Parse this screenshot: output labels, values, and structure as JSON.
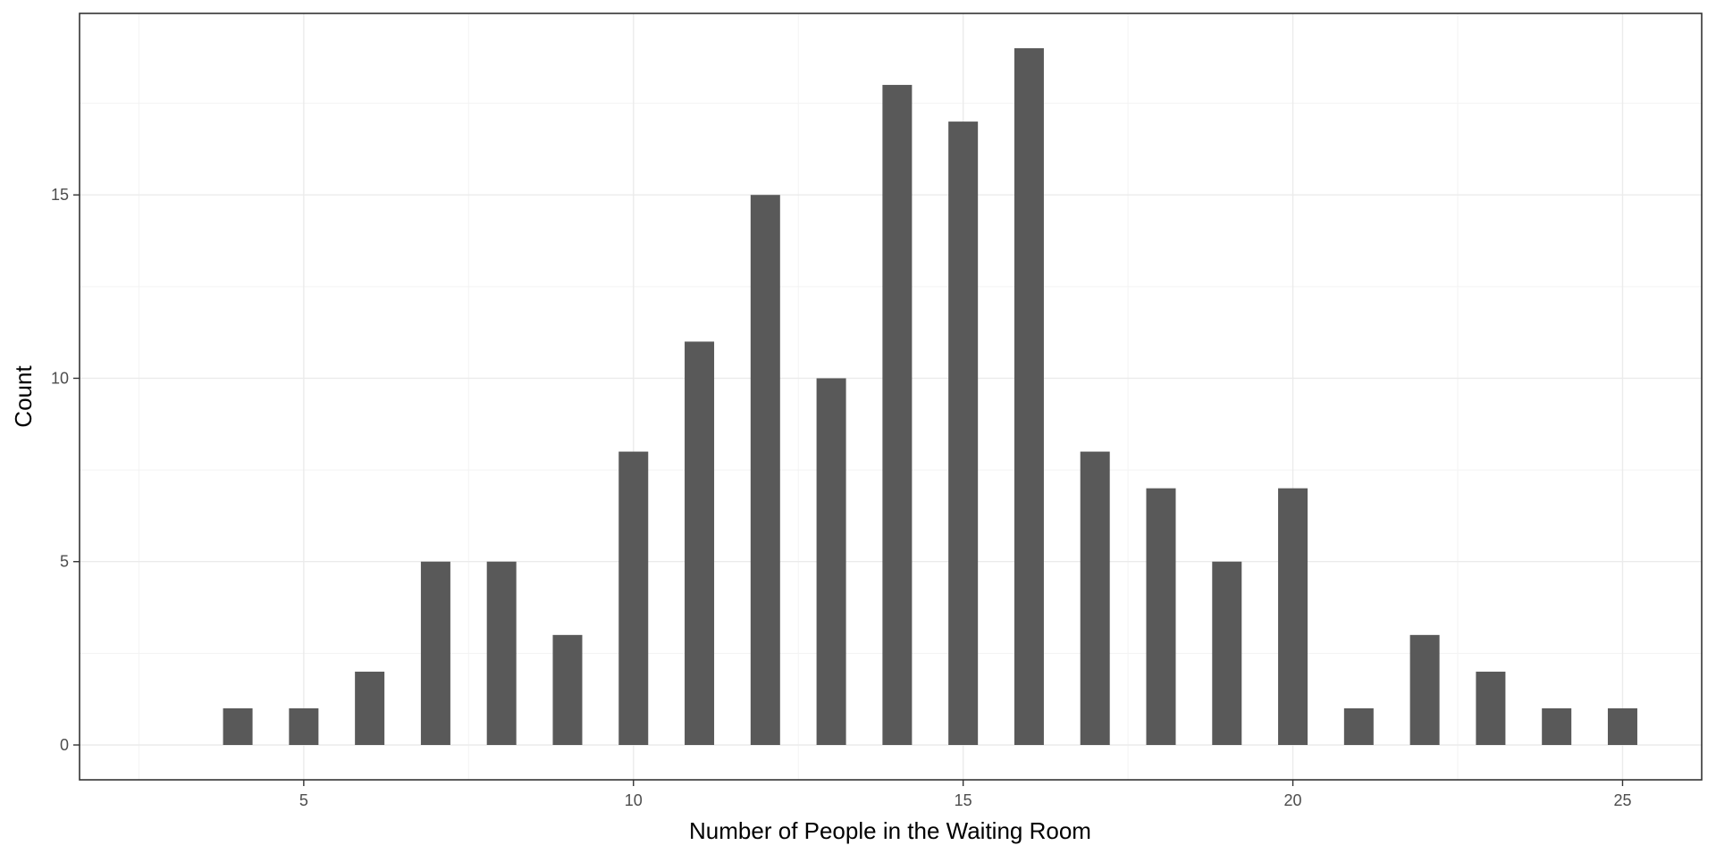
{
  "chart_data": {
    "type": "bar",
    "title": "",
    "xlabel": "Number of People in the Waiting Room",
    "ylabel": "Count",
    "x": [
      4,
      5,
      6,
      7,
      8,
      9,
      10,
      11,
      12,
      13,
      14,
      15,
      16,
      17,
      18,
      19,
      20,
      21,
      22,
      23,
      24,
      25
    ],
    "values": [
      1,
      1,
      2,
      5,
      5,
      3,
      8,
      11,
      15,
      10,
      18,
      17,
      19,
      8,
      7,
      5,
      7,
      1,
      3,
      2,
      1,
      1
    ],
    "xlim": [
      1.6,
      26.2
    ],
    "ylim": [
      -0.95,
      19.95
    ],
    "x_ticks": [
      5,
      10,
      15,
      20,
      25
    ],
    "x_tick_labels": [
      "5",
      "10",
      "15",
      "20",
      "25"
    ],
    "y_ticks": [
      0,
      5,
      10,
      15
    ],
    "y_tick_labels": [
      "0",
      "5",
      "10",
      "15"
    ],
    "grid": true,
    "legend": "none",
    "colors": {
      "bar": "#595959",
      "panel_border": "#333333",
      "grid": "#ebebeb",
      "background": "#ffffff"
    }
  }
}
